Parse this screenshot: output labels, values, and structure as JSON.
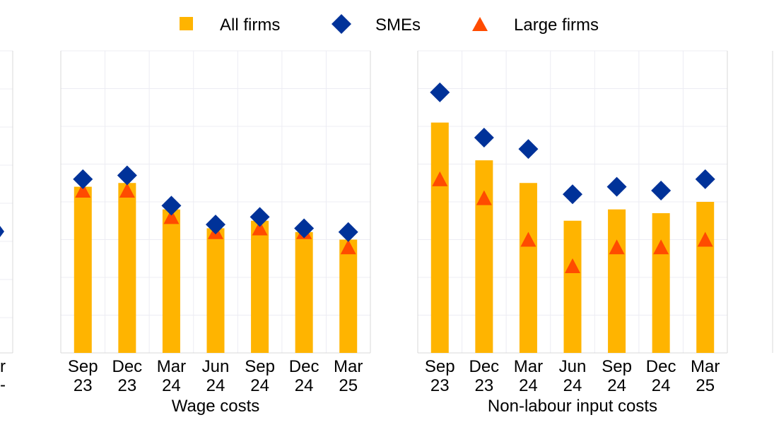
{
  "colors": {
    "all_firms": "#FFB400",
    "smes": "#003299",
    "large_firms": "#FF4B00",
    "grid": "#ECECF3",
    "axis": "#D9D9D9"
  },
  "legend": {
    "placement": "top-center",
    "items": [
      {
        "label": "All firms",
        "marker": "square",
        "color": "#FFB400"
      },
      {
        "label": "SMEs",
        "marker": "diamond",
        "color": "#003299"
      },
      {
        "label": "Large firms",
        "marker": "triangle",
        "color": "#FF4B00"
      }
    ]
  },
  "chart_data": [
    {
      "type": "bar",
      "xlabel": "Wage costs",
      "categories": [
        [
          "Sep",
          "23"
        ],
        [
          "Dec",
          "23"
        ],
        [
          "Mar",
          "24"
        ],
        [
          "Jun",
          "24"
        ],
        [
          "Sep",
          "24"
        ],
        [
          "Dec",
          "24"
        ],
        [
          "Mar",
          "25"
        ]
      ],
      "ylim": [
        0,
        8
      ],
      "grid": true,
      "series": [
        {
          "name": "All firms",
          "kind": "bar",
          "values": [
            4.4,
            4.5,
            3.8,
            3.3,
            3.5,
            3.2,
            3.0
          ]
        },
        {
          "name": "SMEs",
          "kind": "diamond",
          "values": [
            4.6,
            4.7,
            3.9,
            3.4,
            3.6,
            3.3,
            3.2
          ]
        },
        {
          "name": "Large firms",
          "kind": "triangle",
          "values": [
            4.3,
            4.3,
            3.6,
            3.2,
            3.3,
            3.2,
            2.8
          ]
        }
      ]
    },
    {
      "type": "bar",
      "xlabel": "Non-labour input costs",
      "categories": [
        [
          "Sep",
          "23"
        ],
        [
          "Dec",
          "23"
        ],
        [
          "Mar",
          "24"
        ],
        [
          "Jun",
          "24"
        ],
        [
          "Sep",
          "24"
        ],
        [
          "Dec",
          "24"
        ],
        [
          "Mar",
          "25"
        ]
      ],
      "ylim": [
        0,
        8
      ],
      "grid": true,
      "series": [
        {
          "name": "All firms",
          "kind": "bar",
          "values": [
            6.1,
            5.1,
            4.5,
            3.5,
            3.8,
            3.7,
            4.0
          ]
        },
        {
          "name": "SMEs",
          "kind": "diamond",
          "values": [
            6.9,
            5.7,
            5.4,
            4.2,
            4.4,
            4.3,
            4.6
          ]
        },
        {
          "name": "Large firms",
          "kind": "triangle",
          "values": [
            4.6,
            4.1,
            3.0,
            2.3,
            2.8,
            2.8,
            3.0
          ]
        }
      ]
    }
  ],
  "edge_fragments": {
    "left_tick_label_top": "r",
    "left_tick_label_bottom": "-"
  }
}
